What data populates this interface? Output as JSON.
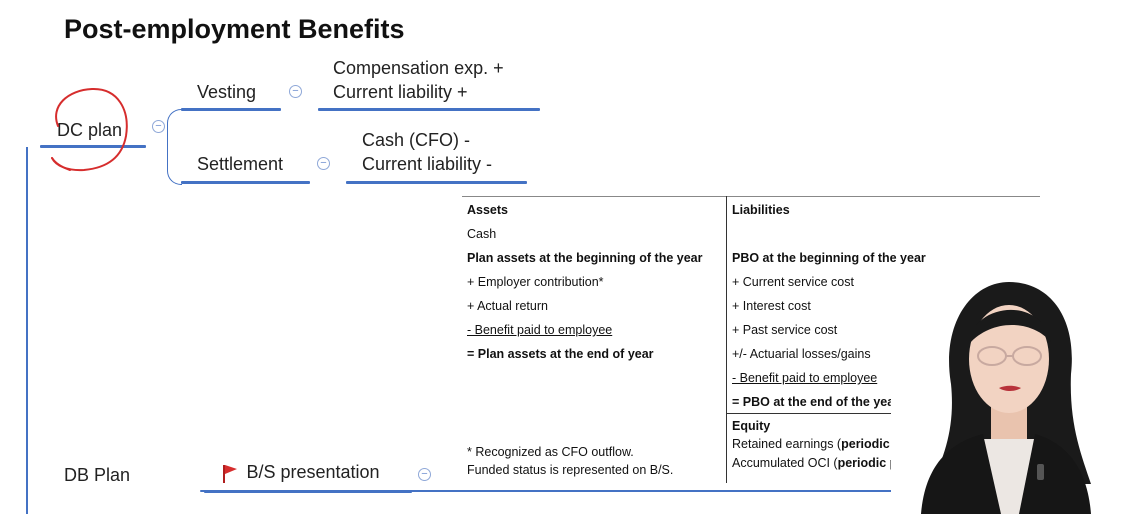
{
  "title": "Post-employment Benefits",
  "dc_plan": {
    "label": "DC plan",
    "vesting": {
      "label": "Vesting",
      "lines": [
        "Compensation exp. +",
        "Current liability +"
      ]
    },
    "settlement": {
      "label": "Settlement",
      "lines": [
        "Cash (CFO) -",
        "Current liability -"
      ]
    }
  },
  "db_plan": {
    "label": "DB Plan",
    "bs_presentation": {
      "label": "B/S presentation",
      "flag_color": "#d62d2d"
    }
  },
  "table": {
    "assets": {
      "header": "Assets",
      "rows": [
        "Cash",
        "Plan assets at the beginning of the year",
        "+ Employer contribution*",
        "+ Actual return",
        "- Benefit paid to employee",
        "= Plan assets at the end of year"
      ]
    },
    "liabilities": {
      "header": "Liabilities",
      "rows": [
        "PBO at the beginning of the year",
        "+ Current service cost",
        "+ Interest cost",
        "+ Past service cost",
        "+/- Actuarial losses/gains",
        "- Benefit paid to employee",
        "= PBO at the end of the year"
      ]
    },
    "equity": {
      "header": "Equity",
      "retained_prefix": "Retained earnings (",
      "retained_bold": "periodic p",
      "oci_prefix": "Accumulated OCI (",
      "oci_bold": "periodic p"
    },
    "notes": [
      "* Recognized as CFO outflow.",
      "Funded status is represented on B/S."
    ]
  },
  "colors": {
    "accent": "#4472c4",
    "annotation": "#d62d2d"
  }
}
